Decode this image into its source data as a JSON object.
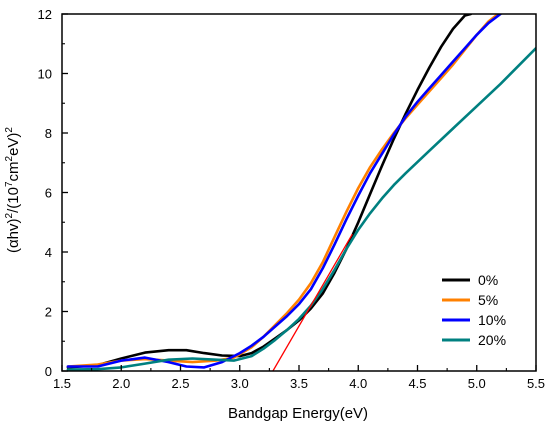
{
  "chart_data": {
    "type": "line",
    "title": "",
    "xlabel": "Bandgap Energy(eV)",
    "ylabel": {
      "prefix": "(",
      "alpha": "α",
      "hv": "hv)",
      "sup1": "2",
      "mid": "/(10",
      "sup2": "7",
      "unit1": "cm",
      "sup3": "2",
      "unit2": "eV)",
      "sup4": "2"
    },
    "xlim": [
      1.5,
      5.5
    ],
    "ylim": [
      0,
      12
    ],
    "x_ticks": [
      "1.5",
      "2.0",
      "2.5",
      "3.0",
      "3.5",
      "4.0",
      "4.5",
      "5.0",
      "5.5"
    ],
    "y_ticks": [
      "0",
      "2",
      "4",
      "6",
      "8",
      "10",
      "12"
    ],
    "x_tick_values": [
      1.5,
      2.0,
      2.5,
      3.0,
      3.5,
      4.0,
      4.5,
      5.0,
      5.5
    ],
    "y_tick_values": [
      0,
      2,
      4,
      6,
      8,
      10,
      12
    ],
    "grid": false,
    "legend_position": "bottom-right",
    "series": [
      {
        "name": "0%",
        "color": "#000000",
        "points": [
          [
            1.55,
            0.12
          ],
          [
            1.8,
            0.2
          ],
          [
            2.0,
            0.42
          ],
          [
            2.2,
            0.62
          ],
          [
            2.4,
            0.7
          ],
          [
            2.55,
            0.7
          ],
          [
            2.7,
            0.6
          ],
          [
            2.85,
            0.52
          ],
          [
            3.0,
            0.5
          ],
          [
            3.1,
            0.6
          ],
          [
            3.2,
            0.82
          ],
          [
            3.3,
            1.1
          ],
          [
            3.4,
            1.38
          ],
          [
            3.5,
            1.7
          ],
          [
            3.6,
            2.1
          ],
          [
            3.7,
            2.6
          ],
          [
            3.8,
            3.3
          ],
          [
            3.9,
            4.1
          ],
          [
            4.0,
            5.0
          ],
          [
            4.1,
            5.95
          ],
          [
            4.2,
            6.9
          ],
          [
            4.3,
            7.8
          ],
          [
            4.4,
            8.65
          ],
          [
            4.5,
            9.45
          ],
          [
            4.6,
            10.2
          ],
          [
            4.7,
            10.9
          ],
          [
            4.8,
            11.5
          ],
          [
            4.9,
            11.95
          ],
          [
            4.95,
            12.0
          ]
        ]
      },
      {
        "name": "5%",
        "color": "#ff8000",
        "points": [
          [
            1.55,
            0.15
          ],
          [
            1.8,
            0.22
          ],
          [
            2.0,
            0.35
          ],
          [
            2.2,
            0.4
          ],
          [
            2.4,
            0.35
          ],
          [
            2.6,
            0.3
          ],
          [
            2.8,
            0.35
          ],
          [
            2.95,
            0.45
          ],
          [
            3.1,
            0.8
          ],
          [
            3.2,
            1.15
          ],
          [
            3.3,
            1.55
          ],
          [
            3.4,
            1.95
          ],
          [
            3.5,
            2.4
          ],
          [
            3.6,
            2.95
          ],
          [
            3.7,
            3.65
          ],
          [
            3.8,
            4.5
          ],
          [
            3.9,
            5.35
          ],
          [
            4.0,
            6.15
          ],
          [
            4.1,
            6.85
          ],
          [
            4.2,
            7.45
          ],
          [
            4.3,
            8.0
          ],
          [
            4.4,
            8.5
          ],
          [
            4.5,
            8.95
          ],
          [
            4.6,
            9.4
          ],
          [
            4.7,
            9.85
          ],
          [
            4.8,
            10.3
          ],
          [
            4.9,
            10.8
          ],
          [
            5.0,
            11.3
          ],
          [
            5.1,
            11.75
          ],
          [
            5.18,
            12.0
          ]
        ]
      },
      {
        "name": "10%",
        "color": "#0000ff",
        "points": [
          [
            1.55,
            0.15
          ],
          [
            1.8,
            0.15
          ],
          [
            2.0,
            0.35
          ],
          [
            2.2,
            0.45
          ],
          [
            2.4,
            0.3
          ],
          [
            2.55,
            0.15
          ],
          [
            2.7,
            0.12
          ],
          [
            2.85,
            0.3
          ],
          [
            3.0,
            0.6
          ],
          [
            3.1,
            0.85
          ],
          [
            3.2,
            1.15
          ],
          [
            3.3,
            1.5
          ],
          [
            3.4,
            1.85
          ],
          [
            3.5,
            2.25
          ],
          [
            3.6,
            2.75
          ],
          [
            3.7,
            3.45
          ],
          [
            3.8,
            4.25
          ],
          [
            3.9,
            5.1
          ],
          [
            4.0,
            5.9
          ],
          [
            4.1,
            6.65
          ],
          [
            4.2,
            7.3
          ],
          [
            4.3,
            7.95
          ],
          [
            4.4,
            8.55
          ],
          [
            4.5,
            9.05
          ],
          [
            4.6,
            9.5
          ],
          [
            4.7,
            9.95
          ],
          [
            4.8,
            10.4
          ],
          [
            4.9,
            10.85
          ],
          [
            5.0,
            11.3
          ],
          [
            5.1,
            11.7
          ],
          [
            5.2,
            12.0
          ]
        ]
      },
      {
        "name": "20%",
        "color": "#008080",
        "points": [
          [
            1.55,
            0.05
          ],
          [
            1.8,
            0.06
          ],
          [
            2.0,
            0.12
          ],
          [
            2.2,
            0.25
          ],
          [
            2.4,
            0.38
          ],
          [
            2.6,
            0.42
          ],
          [
            2.8,
            0.38
          ],
          [
            2.95,
            0.35
          ],
          [
            3.1,
            0.5
          ],
          [
            3.2,
            0.75
          ],
          [
            3.3,
            1.05
          ],
          [
            3.4,
            1.38
          ],
          [
            3.5,
            1.75
          ],
          [
            3.6,
            2.2
          ],
          [
            3.7,
            2.75
          ],
          [
            3.8,
            3.4
          ],
          [
            3.9,
            4.1
          ],
          [
            4.0,
            4.75
          ],
          [
            4.1,
            5.3
          ],
          [
            4.2,
            5.8
          ],
          [
            4.3,
            6.25
          ],
          [
            4.4,
            6.65
          ],
          [
            4.6,
            7.4
          ],
          [
            4.8,
            8.15
          ],
          [
            5.0,
            8.9
          ],
          [
            5.2,
            9.65
          ],
          [
            5.4,
            10.45
          ],
          [
            5.5,
            10.85
          ]
        ]
      }
    ],
    "tangent_line": {
      "color": "#ff0000",
      "points": [
        [
          3.28,
          0.0
        ],
        [
          3.95,
          4.6
        ]
      ]
    }
  }
}
